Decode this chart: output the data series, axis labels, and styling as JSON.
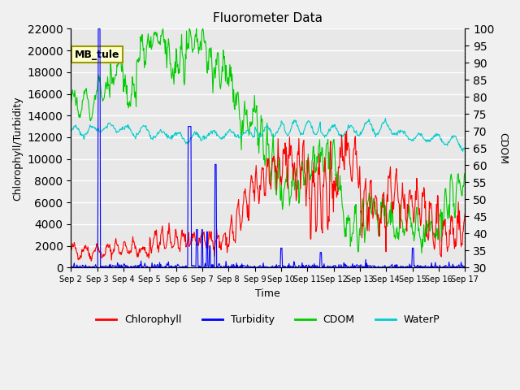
{
  "title": "Fluorometer Data",
  "xlabel": "Time",
  "ylabel_left": "Chlorophyll/Turbidity",
  "ylabel_right": "CDOM",
  "ylim_left": [
    0,
    22000
  ],
  "ylim_right": [
    30,
    100
  ],
  "yticks_left": [
    0,
    2000,
    4000,
    6000,
    8000,
    10000,
    12000,
    14000,
    16000,
    18000,
    20000,
    22000
  ],
  "yticks_right": [
    30,
    35,
    40,
    45,
    50,
    55,
    60,
    65,
    70,
    75,
    80,
    85,
    90,
    95,
    100
  ],
  "xtick_labels": [
    "Sep 2",
    "Sep 3",
    "Sep 4",
    "Sep 5",
    "Sep 6",
    "Sep 7",
    "Sep 8",
    "Sep 9",
    "Sep 10",
    "Sep 11",
    "Sep 12",
    "Sep 13",
    "Sep 14",
    "Sep 15",
    "Sep 16",
    "Sep 17"
  ],
  "annotation_text": "MB_tule",
  "colors": {
    "chlorophyll": "#ff0000",
    "turbidity": "#0000ff",
    "cdom": "#00cc00",
    "waterp": "#00cccc",
    "background": "#e8e8e8",
    "annotation_bg": "#ffffcc",
    "annotation_border": "#999900",
    "grid_color": "#ffffff"
  },
  "legend_entries": [
    "Chlorophyll",
    "Turbidity",
    "CDOM",
    "WaterP"
  ],
  "total_days": 15,
  "pts_per_day": 48
}
